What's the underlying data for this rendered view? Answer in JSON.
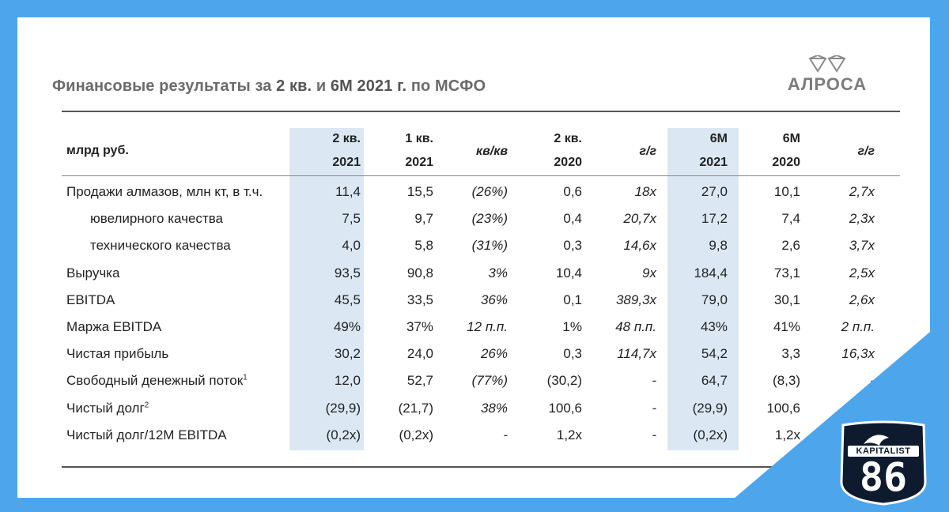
{
  "title": {
    "part1": "Финансовые результаты за ",
    "bold1": "2 кв.",
    "part2": " и ",
    "bold2": "6М 2021 г.",
    "part3": " по МСФО"
  },
  "logo_text": "АЛРОСА",
  "unit_label": "млрд руб.",
  "columns": [
    {
      "line1": "2 кв.",
      "line2": "2021"
    },
    {
      "line1": "1 кв.",
      "line2": "2021"
    },
    {
      "line1": "кв/кв",
      "line2": ""
    },
    {
      "line1": "2 кв.",
      "line2": "2020"
    },
    {
      "line1": "г/г",
      "line2": ""
    },
    {
      "line1": "6М",
      "line2": "2021"
    },
    {
      "line1": "6М",
      "line2": "2020"
    },
    {
      "line1": "г/г",
      "line2": ""
    }
  ],
  "rows": [
    {
      "label": "Продажи алмазов, млн кт, в т.ч.",
      "sup": "",
      "values": [
        "11,4",
        "15,5",
        "(26%)",
        "0,6",
        "18x",
        "27,0",
        "10,1",
        "2,7x"
      ]
    },
    {
      "label": "ювелирного качества",
      "sup": "",
      "values": [
        "7,5",
        "9,7",
        "(23%)",
        "0,4",
        "20,7x",
        "17,2",
        "7,4",
        "2,3x"
      ]
    },
    {
      "label": "технического качества",
      "sup": "",
      "values": [
        "4,0",
        "5,8",
        "(31%)",
        "0,3",
        "14,6x",
        "9,8",
        "2,6",
        "3,7x"
      ]
    },
    {
      "label": "Выручка",
      "sup": "",
      "values": [
        "93,5",
        "90,8",
        "3%",
        "10,4",
        "9x",
        "184,4",
        "73,1",
        "2,5x"
      ]
    },
    {
      "label": "EBITDA",
      "sup": "",
      "values": [
        "45,5",
        "33,5",
        "36%",
        "0,1",
        "389,3x",
        "79,0",
        "30,1",
        "2,6x"
      ]
    },
    {
      "label": "Маржа EBITDA",
      "sup": "",
      "values": [
        "49%",
        "37%",
        "12 п.п.",
        "1%",
        "48 п.п.",
        "43%",
        "41%",
        "2 п.п."
      ]
    },
    {
      "label": "Чистая прибыль",
      "sup": "",
      "values": [
        "30,2",
        "24,0",
        "26%",
        "0,3",
        "114,7x",
        "54,2",
        "3,3",
        "16,3x"
      ]
    },
    {
      "label": "Свободный денежный поток",
      "sup": "1",
      "values": [
        "12,0",
        "52,7",
        "(77%)",
        "(30,2)",
        "-",
        "64,7",
        "(8,3)",
        "-"
      ]
    },
    {
      "label": "Чистый долг",
      "sup": "2",
      "values": [
        "(29,9)",
        "(21,7)",
        "38%",
        "100,6",
        "-",
        "(29,9)",
        "100,6",
        ""
      ]
    },
    {
      "label": "Чистый долг/12М EBITDA",
      "sup": "",
      "values": [
        "(0,2x)",
        "(0,2x)",
        "-",
        "1,2x",
        "-",
        "(0,2x)",
        "1,2x",
        ""
      ]
    }
  ],
  "badge": {
    "line1": "KAPITALIST",
    "line2": "86"
  },
  "colors": {
    "frame": "#4da6ec",
    "highlight": "#dbe8f4",
    "badge_bg": "#0e1a2e"
  }
}
